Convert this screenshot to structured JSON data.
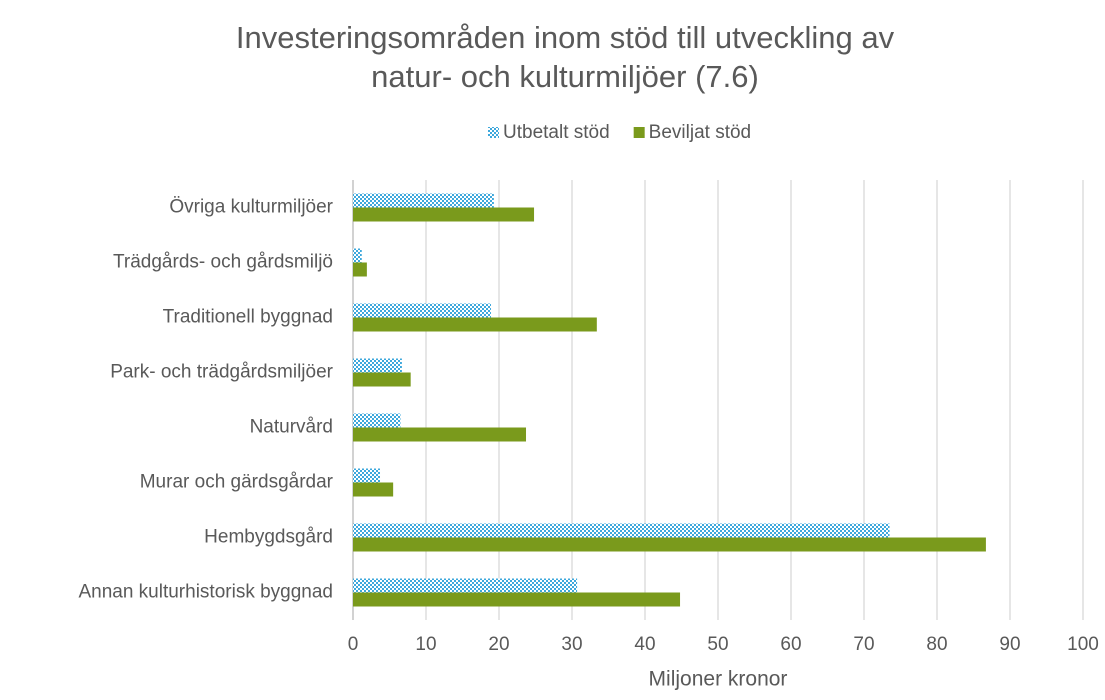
{
  "chart_data": {
    "type": "hbar",
    "title": [
      "Investeringsområden inom stöd till utveckling av",
      "natur- och kulturmiljöer (7.6)"
    ],
    "x_label": "Miljoner kronor",
    "categories": [
      "Övriga kulturmiljöer",
      "Trädgårds- och gårdsmiljö",
      "Traditionell byggnad",
      "Park- och trädgårdsmiljöer",
      "Naturvård",
      "Murar och gärdsgårdar",
      "Hembygdsgård",
      "Annan kulturhistorisk byggnad"
    ],
    "series": [
      {
        "name": "Utbetalt stöd",
        "color": "#3ea8dc",
        "pattern": "checker",
        "values": [
          19.3,
          1.2,
          18.9,
          6.7,
          6.5,
          3.7,
          73.5,
          30.7
        ]
      },
      {
        "name": "Beviljat stöd",
        "color": "#7a9a1c",
        "values": [
          24.8,
          1.9,
          33.4,
          7.9,
          23.7,
          5.5,
          86.7,
          44.8
        ]
      }
    ],
    "xlim": [
      0,
      100
    ],
    "xticks": [
      0,
      10,
      20,
      30,
      40,
      50,
      60,
      70,
      80,
      90,
      100
    ],
    "grid": true,
    "legend": "top"
  }
}
